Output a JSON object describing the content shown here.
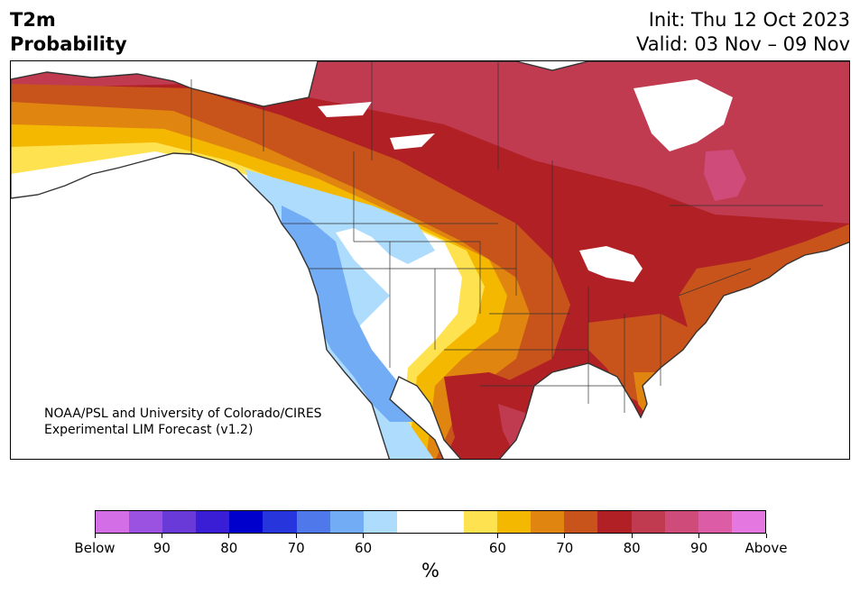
{
  "title": {
    "left_line1": "T2m",
    "left_line2": "Probability",
    "right_line1": "Init: Thu 12 Oct 2023",
    "right_line2": "Valid: 03 Nov – 09 Nov"
  },
  "credit": {
    "line1": "NOAA/PSL and University of Colorado/CIRES",
    "line2": "Experimental LIM Forecast (v1.2)"
  },
  "colorbar": {
    "unit": "%",
    "colors": [
      "#d46ee6",
      "#9c52e0",
      "#6a3ad8",
      "#3a1ed6",
      "#0000cc",
      "#2636dc",
      "#4f78ea",
      "#72acf4",
      "#aedcfc",
      "#ffffff",
      "#ffffff",
      "#ffe24f",
      "#f5b800",
      "#e08610",
      "#c8541c",
      "#b02024",
      "#c03a50",
      "#cf4c7a",
      "#dc5ca6",
      "#e478e0"
    ],
    "tick_labels": [
      "Below",
      "90",
      "80",
      "70",
      "60",
      "60",
      "70",
      "80",
      "90",
      "Above"
    ]
  },
  "map": {
    "colors": {
      "ocean": "#ffffff",
      "white": "#ffffff",
      "light_blue": "#aedcfc",
      "blue": "#72acf4",
      "deep_blue": "#4f78ea",
      "yellow": "#ffe24f",
      "gold": "#f5b800",
      "orange": "#e08610",
      "dark_orange": "#c8541c",
      "red": "#b02024",
      "crimson": "#c03a50",
      "pink": "#cf4c7a",
      "border": "#333333"
    }
  }
}
